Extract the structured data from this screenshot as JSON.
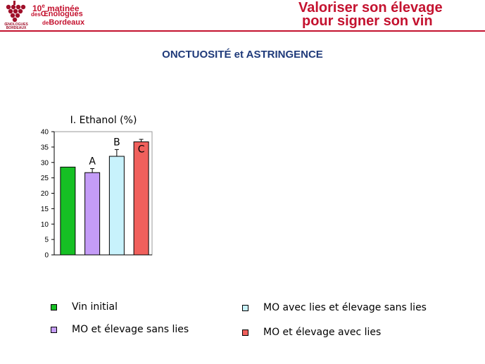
{
  "header": {
    "logo_caption": "ŒNOLOGUES BORDEAUX",
    "event_line1_num": "10",
    "event_line1_sup": "e",
    "event_line1_text": " matinée",
    "event_line2_prefix": "des",
    "event_line2_text": "Œnologues",
    "event_line3_prefix": "de",
    "event_line3_text": "Bordeaux",
    "headline_line1": "Valoriser son élevage",
    "headline_line2": "pour signer son vin",
    "accent_color": "#c4122f"
  },
  "slide_title": "ONCTUOSITÉ et ASTRINGENCE",
  "chart_data": {
    "type": "bar",
    "title": "I. Ethanol (%)",
    "categories": [
      "Vin initial",
      "MO et élevage sans lies",
      "MO avec lies et élevage sans lies",
      "MO et élevage avec lies"
    ],
    "values": [
      28.5,
      26.7,
      32.0,
      36.7
    ],
    "errors": [
      0,
      1.3,
      2.2,
      0.8
    ],
    "letters": [
      "",
      "A",
      "B",
      "C"
    ],
    "colors": [
      "#16c024",
      "#c49cf7",
      "#c8f2fc",
      "#f0605c"
    ],
    "ylim": [
      0,
      40
    ],
    "yticks": [
      "0",
      "5",
      "10",
      "15",
      "20",
      "25",
      "30",
      "35",
      "40"
    ],
    "grid": false
  },
  "legend": [
    {
      "label": "Vin initial",
      "color": "#16c024"
    },
    {
      "label": "MO et élevage sans lies",
      "color": "#c49cf7"
    },
    {
      "label": "MO avec lies et élevage sans lies",
      "color": "#c8f2fc"
    },
    {
      "label": "MO et élevage avec lies",
      "color": "#f0605c"
    }
  ]
}
